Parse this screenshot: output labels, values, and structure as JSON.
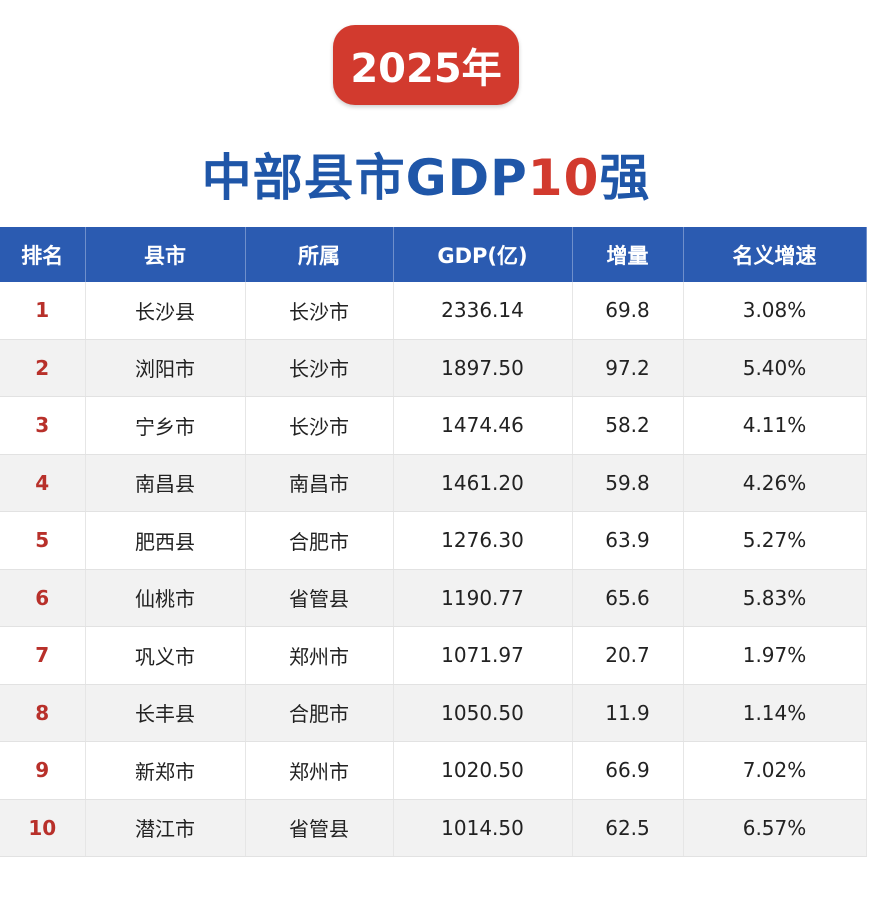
{
  "badge": "2025年",
  "title": {
    "before": "中部县市GDP",
    "highlight": "10",
    "after": "强"
  },
  "table": {
    "headers": [
      "排名",
      "县市",
      "所属",
      "GDP(亿)",
      "增量",
      "名义增速"
    ],
    "rows": [
      [
        "1",
        "长沙县",
        "长沙市",
        "2336.14",
        "69.8",
        "3.08%"
      ],
      [
        "2",
        "浏阳市",
        "长沙市",
        "1897.50",
        "97.2",
        "5.40%"
      ],
      [
        "3",
        "宁乡市",
        "长沙市",
        "1474.46",
        "58.2",
        "4.11%"
      ],
      [
        "4",
        "南昌县",
        "南昌市",
        "1461.20",
        "59.8",
        "4.26%"
      ],
      [
        "5",
        "肥西县",
        "合肥市",
        "1276.30",
        "63.9",
        "5.27%"
      ],
      [
        "6",
        "仙桃市",
        "省管县",
        "1190.77",
        "65.6",
        "5.83%"
      ],
      [
        "7",
        "巩义市",
        "郑州市",
        "1071.97",
        "20.7",
        "1.97%"
      ],
      [
        "8",
        "长丰县",
        "合肥市",
        "1050.50",
        "11.9",
        "1.14%"
      ],
      [
        "9",
        "新郑市",
        "郑州市",
        "1020.50",
        "66.9",
        "7.02%"
      ],
      [
        "10",
        "潜江市",
        "省管县",
        "1014.50",
        "62.5",
        "6.57%"
      ]
    ]
  }
}
